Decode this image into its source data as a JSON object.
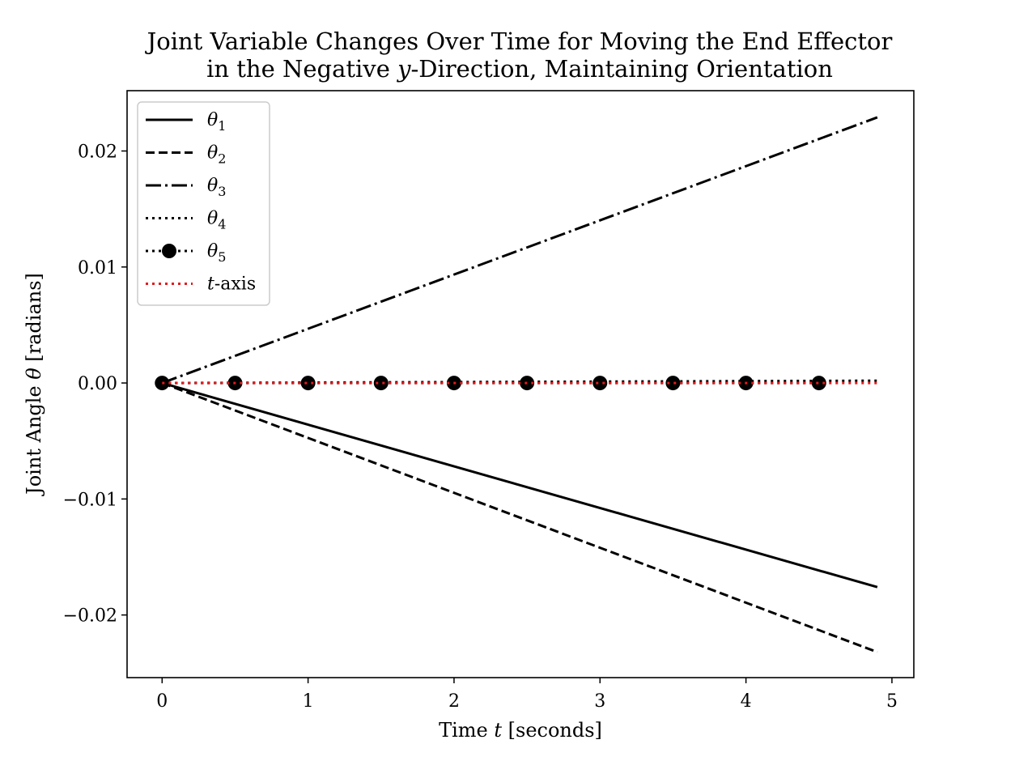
{
  "chart_data": {
    "type": "line",
    "title_lines": [
      {
        "text": "Joint Variable Changes Over Time for Moving the End Effector"
      },
      {
        "pre": "in the Negative ",
        "var": "y",
        "post": "-Direction, Maintaining Orientation"
      }
    ],
    "xlabel": {
      "pre": "Time ",
      "var": "t",
      "post": " [seconds]"
    },
    "ylabel": {
      "pre": "Joint Angle ",
      "var": "θ",
      "post": " [radians]"
    },
    "xlim": [
      -0.24,
      5.15
    ],
    "ylim": [
      -0.0254,
      0.0252
    ],
    "xticks": [
      0,
      1,
      2,
      3,
      4,
      5
    ],
    "xtick_labels": [
      "0",
      "1",
      "2",
      "3",
      "4",
      "5"
    ],
    "yticks": [
      0.02,
      0.01,
      0.0,
      -0.01,
      -0.02
    ],
    "ytick_labels": [
      "0.02",
      "0.01",
      "0.00",
      "−0.01",
      "−0.02"
    ],
    "grid": false,
    "legend_position": "top-left",
    "series": [
      {
        "name": "θ",
        "sub": "1",
        "style": "solid",
        "color": "#000000",
        "x": [
          0,
          4.9
        ],
        "y": [
          0,
          -0.0176
        ]
      },
      {
        "name": "θ",
        "sub": "2",
        "style": "dashed",
        "color": "#000000",
        "x": [
          0,
          4.9
        ],
        "y": [
          0,
          -0.0232
        ]
      },
      {
        "name": "θ",
        "sub": "3",
        "style": "dashdot",
        "color": "#000000",
        "x": [
          0,
          4.9
        ],
        "y": [
          0,
          0.0229
        ]
      },
      {
        "name": "θ",
        "sub": "4",
        "style": "dotted",
        "color": "#000000",
        "x": [
          0,
          4.9
        ],
        "y": [
          0,
          0.0002
        ]
      },
      {
        "name": "θ",
        "sub": "5",
        "style": "dotted-marker",
        "color": "#000000",
        "x": [
          0,
          0.5,
          1,
          1.5,
          2,
          2.5,
          3,
          3.5,
          4,
          4.5
        ],
        "y": [
          0,
          0,
          0,
          0,
          0,
          0,
          0,
          0,
          0,
          0
        ]
      },
      {
        "name": "t",
        "post": "-axis",
        "style": "dotted",
        "color": "#e41a1c",
        "x": [
          0,
          4.9
        ],
        "y": [
          0,
          0
        ]
      }
    ]
  }
}
